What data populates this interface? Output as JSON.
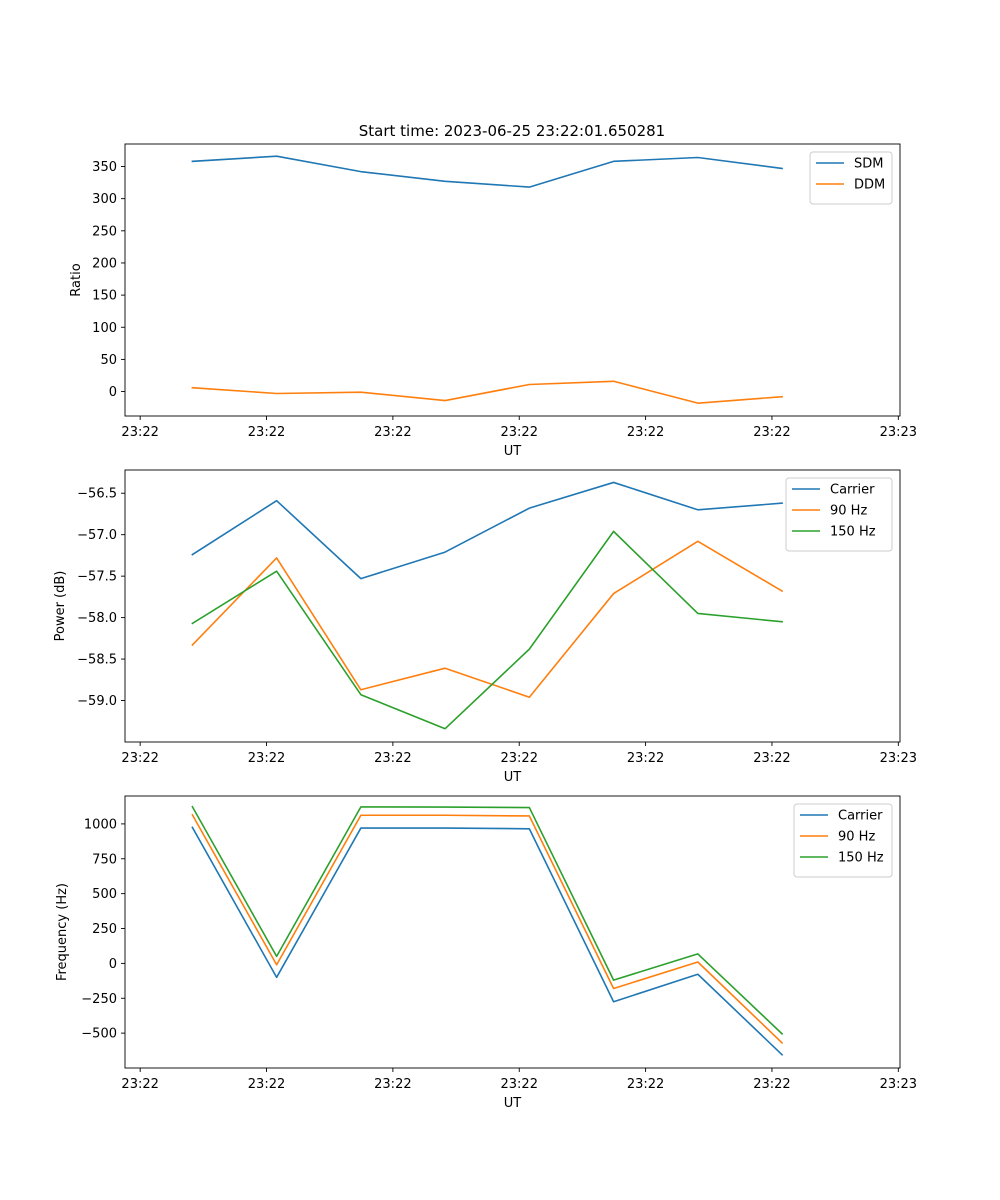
{
  "figure": {
    "title": "Start time: 2023-06-25 23:22:01.650281"
  },
  "chart_data": [
    {
      "type": "line",
      "ylabel": "Ratio",
      "xlabel": "UT",
      "x": [
        1,
        2,
        3,
        4,
        5,
        6,
        7,
        8
      ],
      "xlim": [
        0.2,
        9.4
      ],
      "xticks": [
        {
          "x": 0.38,
          "label": "23:22"
        },
        {
          "x": 1.88,
          "label": "23:22"
        },
        {
          "x": 3.38,
          "label": "23:22"
        },
        {
          "x": 4.88,
          "label": "23:22"
        },
        {
          "x": 6.38,
          "label": "23:22"
        },
        {
          "x": 7.88,
          "label": "23:22"
        },
        {
          "x": 9.38,
          "label": "23:23"
        }
      ],
      "ylim": [
        -38,
        385
      ],
      "yticks": [
        0,
        50,
        100,
        150,
        200,
        250,
        300,
        350
      ],
      "ytick_labels": [
        "0",
        "50",
        "100",
        "150",
        "200",
        "250",
        "300",
        "350"
      ],
      "legend_position": "top-right",
      "series": [
        {
          "name": "SDM",
          "color": "#1f77b4",
          "values": [
            358,
            366,
            342,
            327,
            318,
            358,
            364,
            347
          ]
        },
        {
          "name": "DDM",
          "color": "#ff7f0e",
          "values": [
            6,
            -3,
            -1,
            -14,
            11,
            16,
            -18,
            -8
          ]
        }
      ]
    },
    {
      "type": "line",
      "ylabel": "Power (dB)",
      "xlabel": "UT",
      "x": [
        1,
        2,
        3,
        4,
        5,
        6,
        7,
        8
      ],
      "xlim": [
        0.2,
        9.4
      ],
      "xticks": [
        {
          "x": 0.38,
          "label": "23:22"
        },
        {
          "x": 1.88,
          "label": "23:22"
        },
        {
          "x": 3.38,
          "label": "23:22"
        },
        {
          "x": 4.88,
          "label": "23:22"
        },
        {
          "x": 6.38,
          "label": "23:22"
        },
        {
          "x": 7.88,
          "label": "23:22"
        },
        {
          "x": 9.38,
          "label": "23:23"
        }
      ],
      "ylim": [
        -59.5,
        -56.22
      ],
      "yticks": [
        -59.0,
        -58.5,
        -58.0,
        -57.5,
        -57.0,
        -56.5
      ],
      "ytick_labels": [
        "−59.0",
        "−58.5",
        "−58.0",
        "−57.5",
        "−57.0",
        "−56.5"
      ],
      "legend_position": "top-right",
      "series": [
        {
          "name": "Carrier",
          "color": "#1f77b4",
          "values": [
            -57.24,
            -56.59,
            -57.53,
            -57.21,
            -56.68,
            -56.37,
            -56.7,
            -56.62
          ]
        },
        {
          "name": "90 Hz",
          "color": "#ff7f0e",
          "values": [
            -58.33,
            -57.28,
            -58.87,
            -58.61,
            -58.96,
            -57.71,
            -57.08,
            -57.68
          ]
        },
        {
          "name": "150 Hz",
          "color": "#2ca02c",
          "values": [
            -58.07,
            -57.44,
            -58.93,
            -59.34,
            -58.38,
            -56.96,
            -57.95,
            -58.05
          ]
        }
      ]
    },
    {
      "type": "line",
      "ylabel": "Frequency (Hz)",
      "xlabel": "UT",
      "x": [
        1,
        2,
        3,
        4,
        5,
        6,
        7,
        8
      ],
      "xlim": [
        0.2,
        9.4
      ],
      "xticks": [
        {
          "x": 0.38,
          "label": "23:22"
        },
        {
          "x": 1.88,
          "label": "23:22"
        },
        {
          "x": 3.38,
          "label": "23:22"
        },
        {
          "x": 4.88,
          "label": "23:22"
        },
        {
          "x": 6.38,
          "label": "23:22"
        },
        {
          "x": 7.88,
          "label": "23:22"
        },
        {
          "x": 9.38,
          "label": "23:23"
        }
      ],
      "ylim": [
        -750,
        1200
      ],
      "yticks": [
        -500,
        -250,
        0,
        250,
        500,
        750,
        1000
      ],
      "ytick_labels": [
        "−500",
        "−250",
        "0",
        "250",
        "500",
        "750",
        "1000"
      ],
      "legend_position": "top-right",
      "series": [
        {
          "name": "Carrier",
          "color": "#1f77b4",
          "values": [
            975,
            -100,
            970,
            970,
            965,
            -275,
            -78,
            -655
          ]
        },
        {
          "name": "90 Hz",
          "color": "#ff7f0e",
          "values": [
            1065,
            -10,
            1062,
            1062,
            1057,
            -180,
            10,
            -570
          ]
        },
        {
          "name": "150 Hz",
          "color": "#2ca02c",
          "values": [
            1123,
            50,
            1122,
            1121,
            1117,
            -120,
            68,
            -505
          ]
        }
      ]
    }
  ]
}
